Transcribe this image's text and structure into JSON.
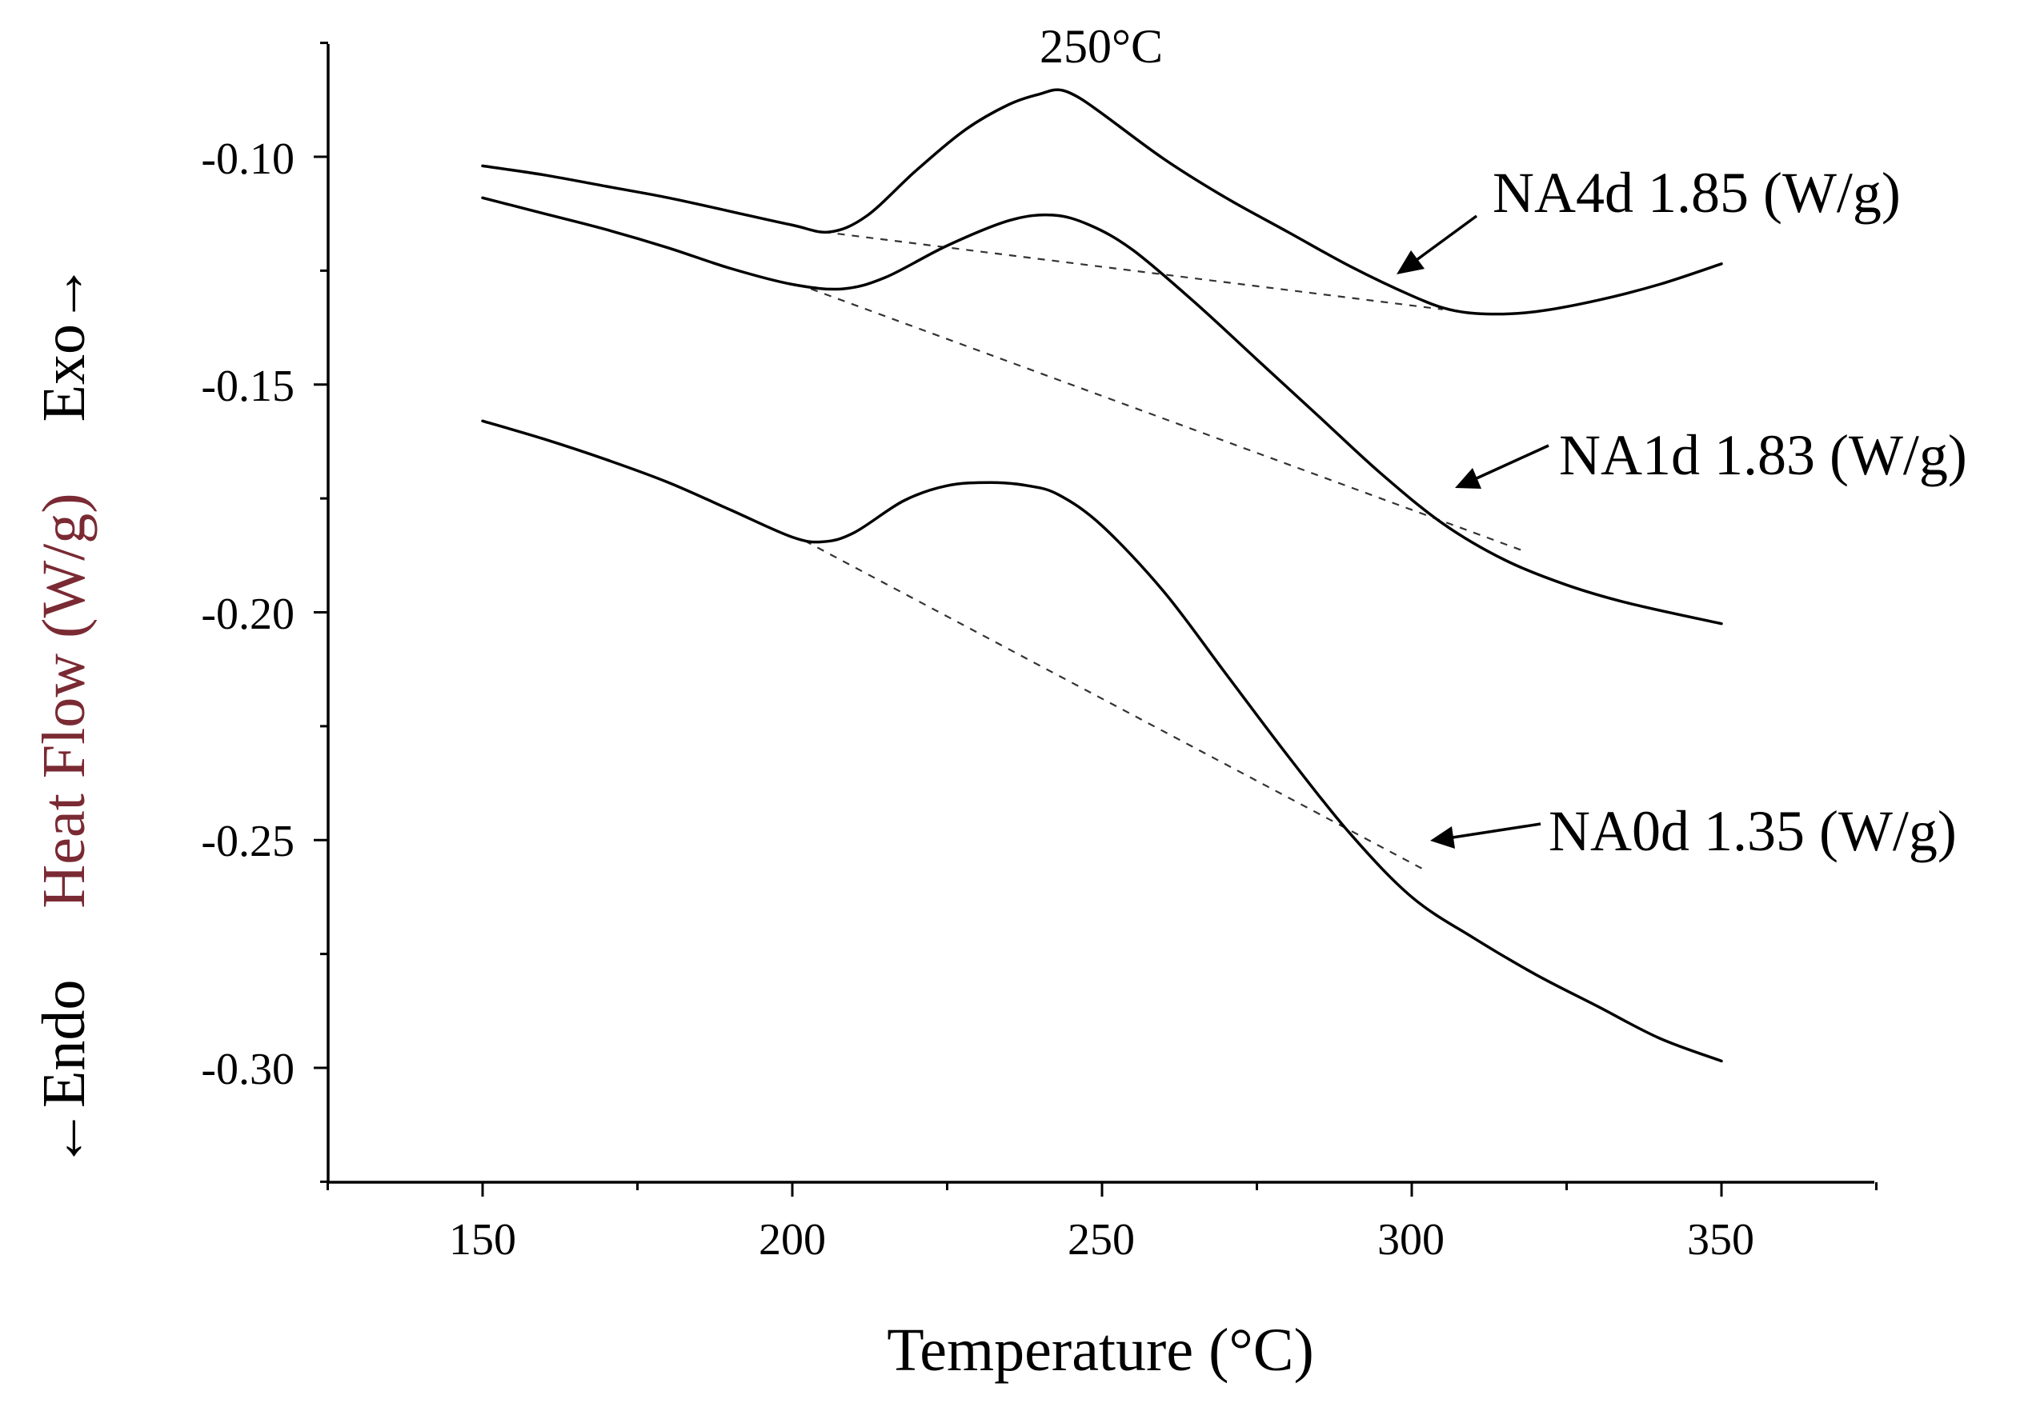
{
  "chart_data": {
    "type": "line",
    "title": "",
    "xlabel": "Temperature (°C)",
    "ylabel": {
      "endo": "←Endo",
      "main": "Heat Flow (W/g)",
      "exo": "Exo→"
    },
    "xlim": [
      125,
      375
    ],
    "ylim": [
      -0.325,
      -0.075
    ],
    "xticks": [
      150,
      200,
      250,
      300,
      350
    ],
    "xtick_labels": [
      "150",
      "200",
      "250",
      "300",
      "350"
    ],
    "xminor": [
      125,
      175,
      225,
      275,
      325,
      375
    ],
    "yticks": [
      -0.3,
      -0.25,
      -0.2,
      -0.15,
      -0.1
    ],
    "ytick_labels": [
      "-0.30",
      "-0.25",
      "-0.20",
      "-0.15",
      "-0.10"
    ],
    "yminor": [
      -0.325,
      -0.275,
      -0.225,
      -0.175,
      -0.125,
      -0.075
    ],
    "series": [
      {
        "name": "NA4d",
        "x": [
          150,
          160,
          170,
          180,
          190,
          200,
          206,
          212,
          220,
          228,
          235,
          240,
          243,
          246,
          250,
          260,
          270,
          280,
          290,
          300,
          306,
          312,
          320,
          330,
          340,
          350
        ],
        "y": [
          -0.102,
          -0.104,
          -0.1065,
          -0.109,
          -0.112,
          -0.115,
          -0.1165,
          -0.113,
          -0.103,
          -0.094,
          -0.0885,
          -0.0862,
          -0.0853,
          -0.0868,
          -0.0905,
          -0.1005,
          -0.109,
          -0.1165,
          -0.124,
          -0.1305,
          -0.1335,
          -0.1345,
          -0.134,
          -0.1315,
          -0.128,
          -0.1235
        ]
      },
      {
        "name": "NA1d",
        "x": [
          150,
          160,
          170,
          180,
          190,
          200,
          208,
          215,
          225,
          235,
          242,
          248,
          255,
          265,
          275,
          285,
          295,
          305,
          315,
          325,
          335,
          350
        ],
        "y": [
          -0.109,
          -0.1125,
          -0.116,
          -0.12,
          -0.1245,
          -0.128,
          -0.129,
          -0.1265,
          -0.1195,
          -0.114,
          -0.1128,
          -0.115,
          -0.1205,
          -0.132,
          -0.1445,
          -0.157,
          -0.1695,
          -0.1805,
          -0.1885,
          -0.194,
          -0.198,
          -0.2025
        ]
      },
      {
        "name": "NA0d",
        "x": [
          150,
          160,
          170,
          180,
          190,
          200,
          205,
          210,
          218,
          225,
          232,
          238,
          243,
          250,
          260,
          270,
          280,
          290,
          300,
          310,
          320,
          330,
          340,
          350
        ],
        "y": [
          -0.158,
          -0.162,
          -0.1665,
          -0.1715,
          -0.1775,
          -0.1835,
          -0.1845,
          -0.1825,
          -0.1755,
          -0.1722,
          -0.1715,
          -0.1722,
          -0.1742,
          -0.181,
          -0.1955,
          -0.2135,
          -0.2315,
          -0.2485,
          -0.2625,
          -0.2715,
          -0.2795,
          -0.2865,
          -0.2935,
          -0.2985
        ]
      }
    ],
    "baselines": [
      {
        "name": "NA4d-baseline",
        "x": [
          205,
          305
        ],
        "y": [
          -0.1165,
          -0.1335
        ]
      },
      {
        "name": "NA1d-baseline",
        "x": [
          203,
          318
        ],
        "y": [
          -0.129,
          -0.1865
        ]
      },
      {
        "name": "NA0d-baseline",
        "x": [
          202,
          302
        ],
        "y": [
          -0.1843,
          -0.2565
        ]
      }
    ],
    "annotations": {
      "peak": "250°C",
      "na4d": "NA4d 1.85 (W/g)",
      "na1d": "NA1d 1.83 (W/g)",
      "na0d": "NA0d 1.35 (W/g)"
    }
  }
}
